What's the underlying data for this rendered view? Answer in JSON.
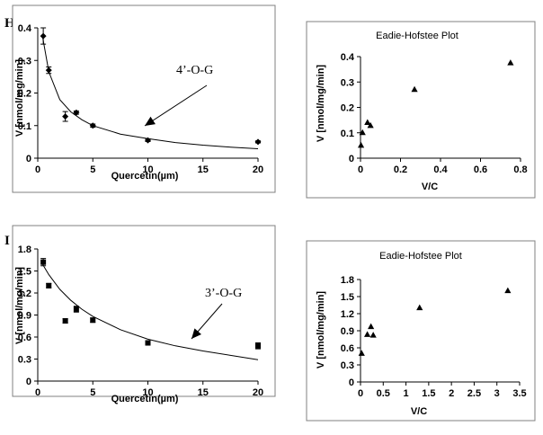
{
  "chart_data": [
    {
      "panel": "H",
      "type": "scatter",
      "title": "",
      "xlabel": "Quercetin(µm)",
      "ylabel": "V [nmol/mg/min]",
      "xlim": [
        0,
        20
      ],
      "ylim": [
        0,
        0.4
      ],
      "xticks": [
        "0",
        "5",
        "10",
        "15",
        "20"
      ],
      "yticks": [
        "0",
        "0.1",
        "0.2",
        "0.3",
        "0.4"
      ],
      "grid": false,
      "annotation": "4’-O-G",
      "series": [
        {
          "x": [
            0.5,
            1,
            2.5,
            3.5,
            5,
            10,
            20
          ],
          "y": [
            0.375,
            0.27,
            0.128,
            0.14,
            0.1,
            0.055,
            0.05
          ],
          "err": [
            0.025,
            0.01,
            0.015,
            0.005,
            0.005,
            0.004,
            0.003
          ],
          "marker": "diamond"
        }
      ],
      "fit": {
        "x": [
          0.4,
          1,
          2,
          3,
          4,
          5,
          7.5,
          10,
          12.5,
          15,
          17.5,
          20
        ],
        "y": [
          0.38,
          0.265,
          0.18,
          0.142,
          0.118,
          0.1,
          0.074,
          0.06,
          0.048,
          0.04,
          0.034,
          0.029
        ]
      }
    },
    {
      "panel": "H",
      "type": "scatter",
      "title": "Eadie-Hofstee Plot",
      "xlabel": "V/C",
      "ylabel": "V [nmol/mg/min]",
      "xlim": [
        0,
        0.8
      ],
      "ylim": [
        0,
        0.4
      ],
      "xticks": [
        "0",
        "0.2",
        "0.4",
        "0.6",
        "0.8"
      ],
      "yticks": [
        "0",
        "0.1",
        "0.2",
        "0.3",
        "0.4"
      ],
      "grid": false,
      "series": [
        {
          "x": [
            0.0025,
            0.01,
            0.035,
            0.05,
            0.27,
            0.75
          ],
          "y": [
            0.05,
            0.1,
            0.14,
            0.128,
            0.27,
            0.375
          ],
          "marker": "triangle"
        }
      ]
    },
    {
      "panel": "I",
      "type": "scatter",
      "title": "",
      "xlabel": "Quercetin(µm)",
      "ylabel": "V [nmol/mg/min]",
      "xlim": [
        0,
        20
      ],
      "ylim": [
        0,
        1.8
      ],
      "xticks": [
        "0",
        "5",
        "10",
        "15",
        "20"
      ],
      "yticks": [
        "0",
        "0.3",
        "0.6",
        "0.9",
        "1.2",
        "1.5",
        "1.8"
      ],
      "grid": false,
      "annotation": "3’-O-G",
      "series": [
        {
          "x": [
            0.5,
            1,
            2.5,
            3.5,
            5,
            10,
            20
          ],
          "y": [
            1.62,
            1.3,
            0.82,
            0.98,
            0.83,
            0.52,
            0.48
          ],
          "err": [
            0.05,
            0.03,
            0.03,
            0.04,
            0.03,
            0.03,
            0.04
          ],
          "marker": "square"
        }
      ],
      "fit": {
        "x": [
          0.4,
          1,
          2,
          3,
          4,
          5,
          7.5,
          10,
          12.5,
          15,
          17.5,
          20
        ],
        "y": [
          1.6,
          1.45,
          1.25,
          1.1,
          0.98,
          0.88,
          0.7,
          0.57,
          0.48,
          0.41,
          0.35,
          0.29
        ]
      }
    },
    {
      "panel": "I",
      "type": "scatter",
      "title": "Eadie-Hofstee Plot",
      "xlabel": "V/C",
      "ylabel": "V [nmol/mg/min]",
      "xlim": [
        0,
        3.5
      ],
      "ylim": [
        0,
        1.8
      ],
      "xticks": [
        "0",
        "0.5",
        "1",
        "1.5",
        "2",
        "2.5",
        "3",
        "3.5"
      ],
      "yticks": [
        "0",
        "0.3",
        "0.6",
        "0.9",
        "1.2",
        "1.5",
        "1.8"
      ],
      "grid": false,
      "series": [
        {
          "x": [
            0.025,
            0.15,
            0.23,
            0.28,
            1.3,
            3.24
          ],
          "y": [
            0.5,
            0.83,
            0.97,
            0.82,
            1.3,
            1.6
          ],
          "marker": "triangle"
        }
      ]
    }
  ],
  "labels": {
    "panel_h": "H",
    "panel_i": "I"
  },
  "colors": {
    "ink": "#000000",
    "frame": "#808080",
    "background": "#ffffff"
  }
}
